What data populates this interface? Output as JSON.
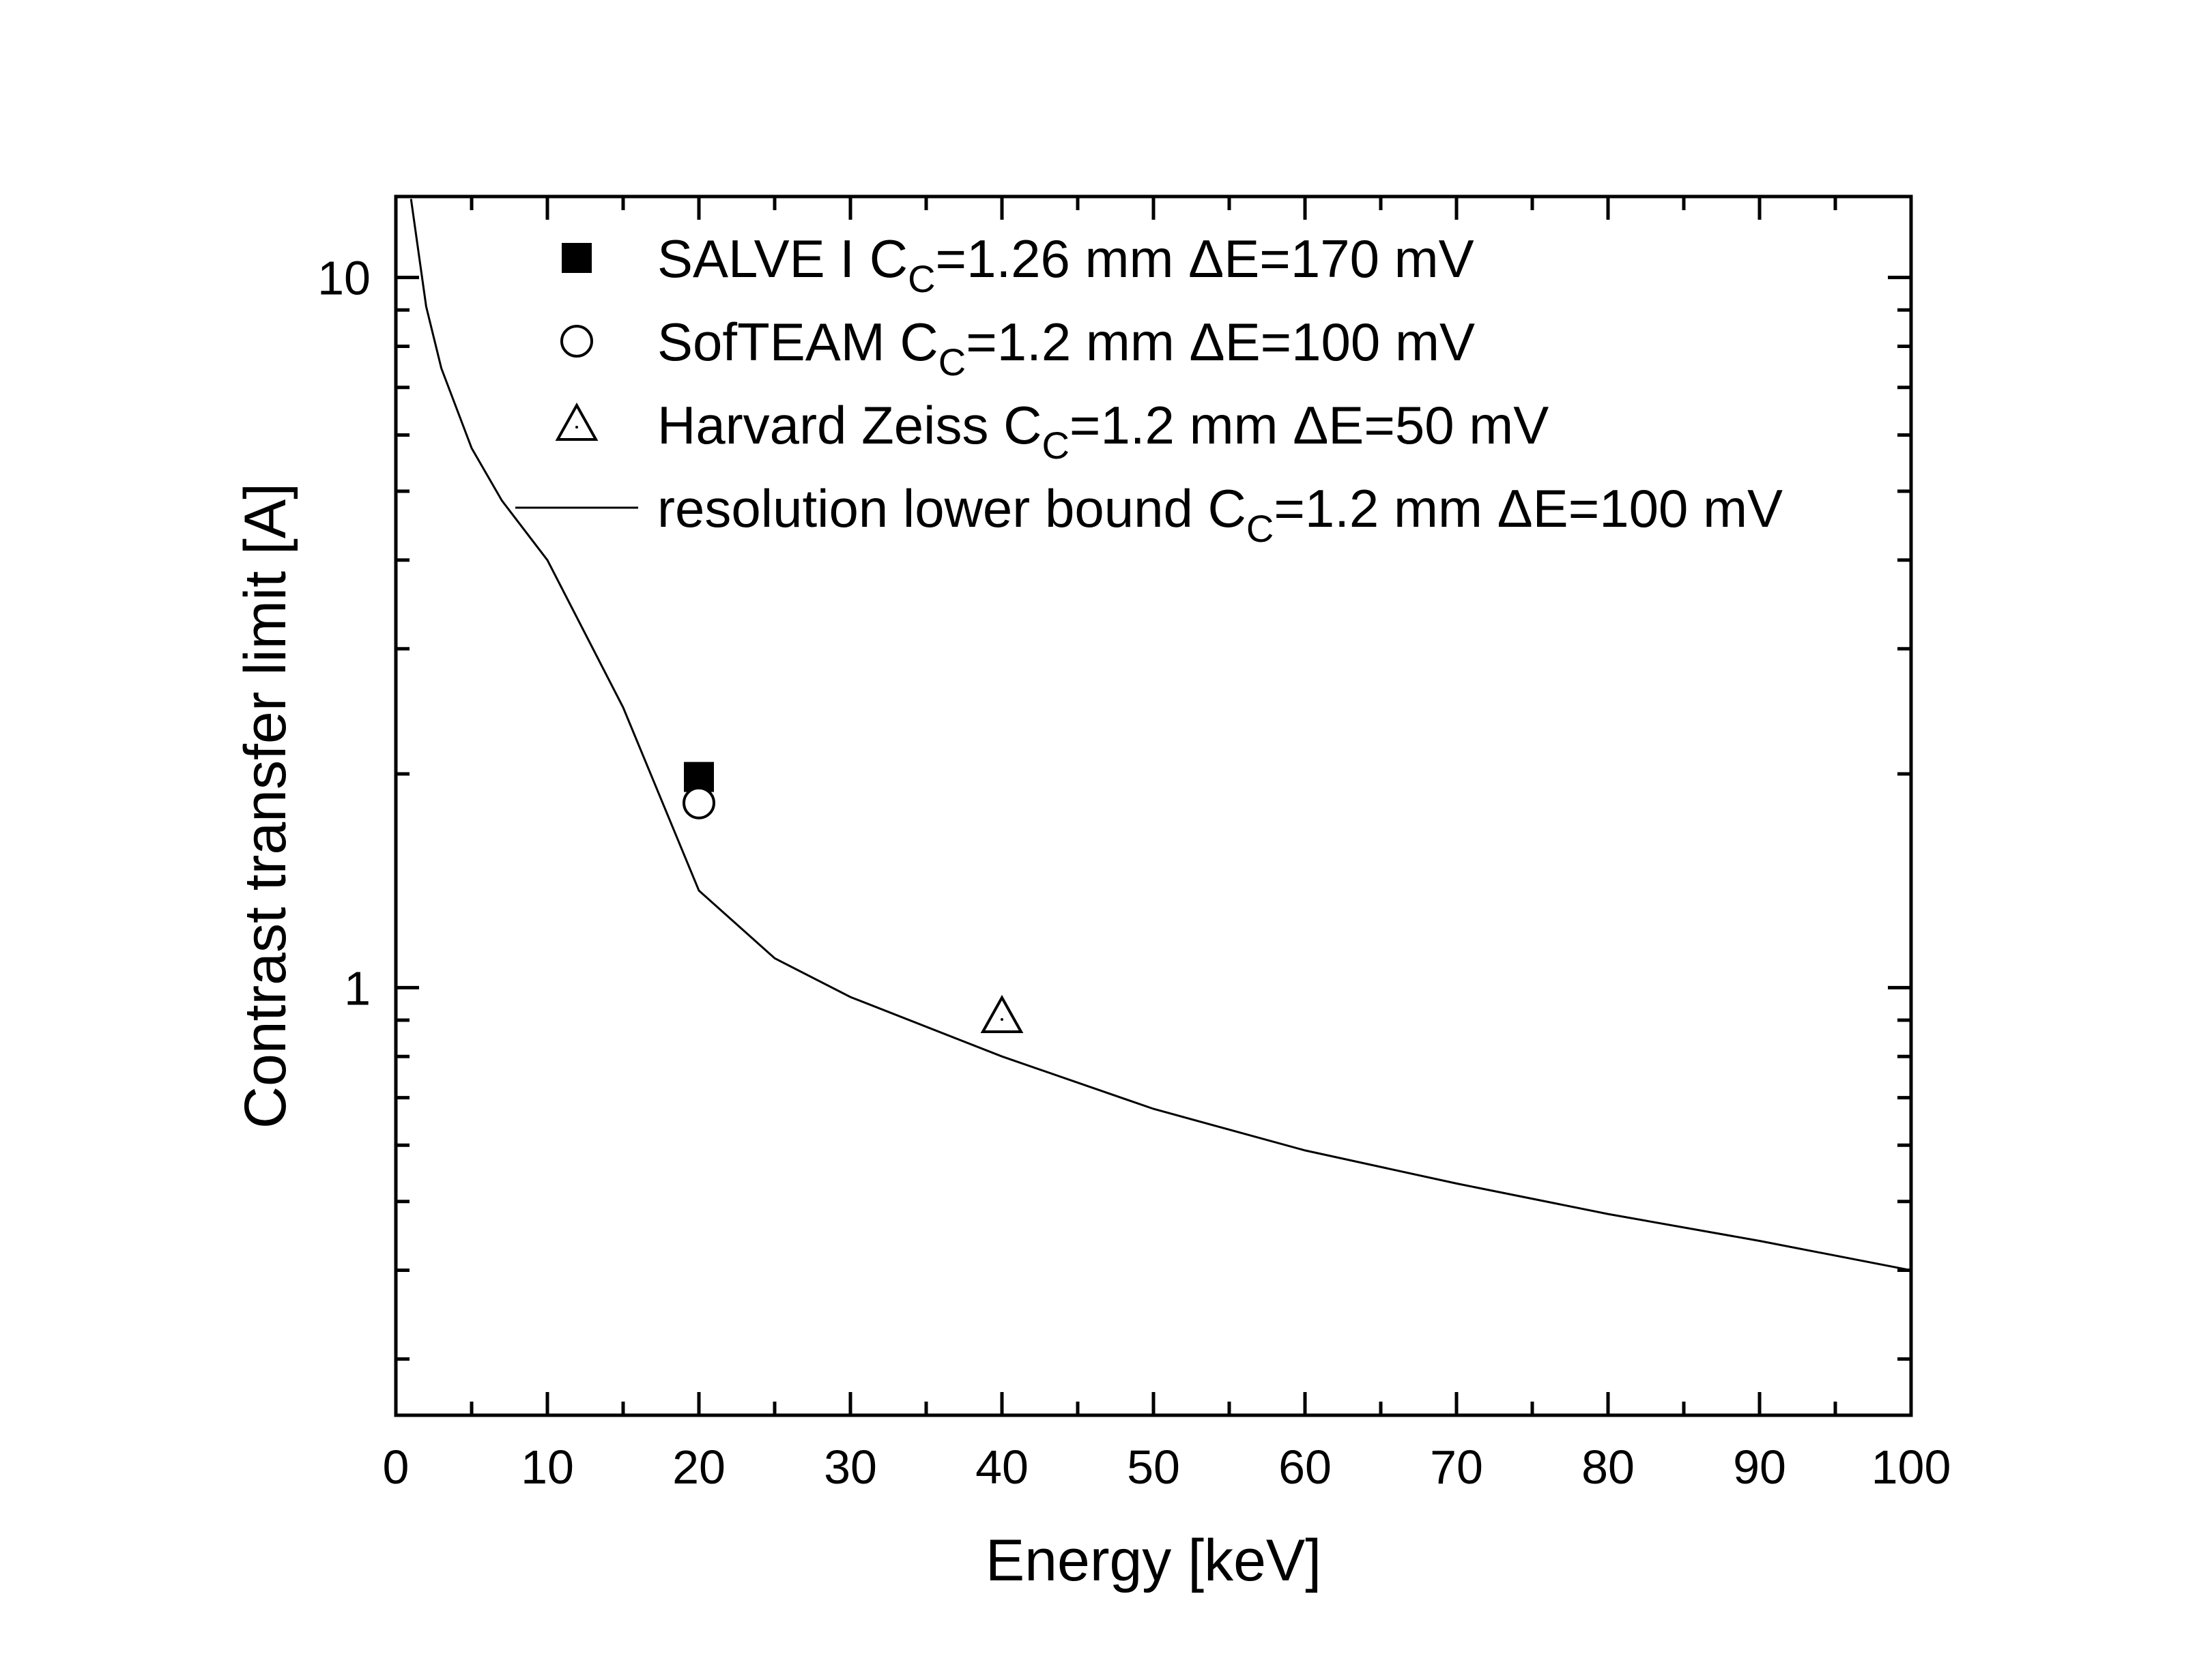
{
  "chart_data": {
    "type": "scatter",
    "title": "",
    "xlabel": "Energy [keV]",
    "ylabel": "Contrast transfer limit [A]",
    "xlim": [
      0,
      100
    ],
    "ylim": [
      0.25,
      13.0
    ],
    "yscale": "log",
    "xticks": [
      "0",
      "10",
      "20",
      "30",
      "40",
      "50",
      "60",
      "70",
      "80",
      "90",
      "100"
    ],
    "yticks": [
      "1",
      "10"
    ],
    "grid": false,
    "legend_position": "top",
    "series": [
      {
        "name": "SALVE I",
        "name_params": "=1.26 mm ΔE=170 mV",
        "marker": "filled-square",
        "points": [
          {
            "x": 20,
            "y": 1.98
          }
        ]
      },
      {
        "name": "SofTEAM",
        "name_params": "=1.2 mm ΔE=100 mV",
        "marker": "open-circle",
        "points": [
          {
            "x": 20,
            "y": 1.82
          }
        ]
      },
      {
        "name": "Harvard Zeiss",
        "name_params": "=1.2 mm ΔE=50 mV",
        "marker": "open-triangle",
        "points": [
          {
            "x": 40,
            "y": 0.91
          }
        ]
      },
      {
        "name": "resolution lower bound",
        "name_params": "=1.2 mm ΔE=100 mV",
        "marker": "line",
        "points": [
          {
            "x": 1,
            "y": 12.9
          },
          {
            "x": 2,
            "y": 9.1
          },
          {
            "x": 3,
            "y": 7.45
          },
          {
            "x": 5,
            "y": 5.75
          },
          {
            "x": 7,
            "y": 4.85
          },
          {
            "x": 10,
            "y": 4.0
          },
          {
            "x": 15,
            "y": 2.48
          },
          {
            "x": 20,
            "y": 1.37
          },
          {
            "x": 25,
            "y": 1.1
          },
          {
            "x": 30,
            "y": 0.97
          },
          {
            "x": 40,
            "y": 0.8
          },
          {
            "x": 50,
            "y": 0.675
          },
          {
            "x": 60,
            "y": 0.59
          },
          {
            "x": 70,
            "y": 0.53
          },
          {
            "x": 80,
            "y": 0.48
          },
          {
            "x": 90,
            "y": 0.44
          },
          {
            "x": 100,
            "y": 0.4
          }
        ]
      }
    ],
    "legend_subscript_symbol": "C",
    "legend_subscript_index": "C"
  }
}
